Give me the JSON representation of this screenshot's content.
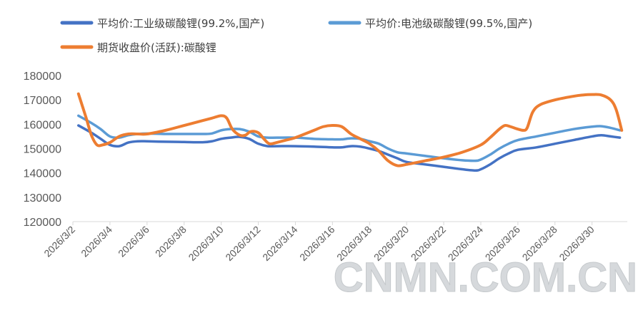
{
  "chart_data": {
    "type": "line",
    "title": "",
    "xlabel": "",
    "ylabel": "",
    "ylim": [
      120000,
      180000
    ],
    "yticks": [
      120000,
      130000,
      140000,
      150000,
      160000,
      170000,
      180000
    ],
    "x_tick_labels": [
      "2026/3/2",
      "2026/3/4",
      "2026/3/6",
      "2026/3/8",
      "2026/3/10",
      "2026/3/12",
      "2026/3/14",
      "2026/3/16",
      "2026/3/18",
      "2026/3/20",
      "2026/3/22",
      "2026/3/24",
      "2026/3/26",
      "2026/3/28",
      "2026/3/30"
    ],
    "x_tick_days": [
      2,
      4,
      6,
      8,
      10,
      12,
      14,
      16,
      18,
      20,
      22,
      24,
      26,
      28,
      30
    ],
    "xlim_days": [
      2,
      31.9
    ],
    "grid": false,
    "legend_position": "top",
    "series": [
      {
        "name": "平均价:工业级碳酸锂(99.2%,国产)",
        "color": "#4472c4",
        "x_days": [
          2.3,
          3.0,
          3.5,
          4.0,
          4.5,
          5.0,
          5.5,
          6.0,
          7.0,
          8.0,
          9.0,
          9.5,
          10.0,
          10.5,
          11.0,
          11.5,
          12.0,
          12.5,
          13.0,
          14.0,
          15.0,
          16.0,
          16.5,
          17.0,
          17.5,
          18.0,
          18.5,
          19.0,
          19.5,
          20.0,
          21.0,
          22.0,
          23.0,
          23.7,
          24.0,
          24.5,
          25.0,
          25.5,
          26.0,
          27.0,
          28.0,
          29.0,
          30.0,
          30.5,
          31.0,
          31.5
        ],
        "values": [
          159500,
          156500,
          154000,
          151500,
          151000,
          152500,
          153000,
          153000,
          152800,
          152700,
          152600,
          153000,
          154000,
          154500,
          154800,
          154000,
          152000,
          151000,
          151000,
          151000,
          150800,
          150500,
          150500,
          151000,
          150800,
          150000,
          149000,
          147500,
          146000,
          144500,
          143500,
          142500,
          141500,
          141000,
          141500,
          143500,
          146000,
          148000,
          149500,
          150500,
          152000,
          153500,
          155000,
          155500,
          155000,
          154500
        ]
      },
      {
        "name": "平均价:电池级碳酸锂(99.5%,国产)",
        "color": "#5b9bd5",
        "x_days": [
          2.3,
          3.0,
          3.5,
          4.0,
          4.5,
          5.0,
          5.5,
          6.0,
          7.0,
          8.0,
          9.0,
          9.5,
          10.0,
          10.5,
          11.0,
          11.5,
          12.0,
          12.5,
          13.0,
          14.0,
          15.0,
          16.0,
          16.5,
          17.0,
          17.5,
          18.0,
          18.5,
          19.0,
          19.5,
          20.0,
          21.0,
          22.0,
          23.0,
          23.7,
          24.0,
          24.5,
          25.0,
          25.5,
          26.0,
          27.0,
          28.0,
          29.0,
          30.0,
          30.5,
          31.0,
          31.5
        ],
        "values": [
          163500,
          160500,
          158000,
          155000,
          154500,
          155500,
          156000,
          156200,
          156000,
          156000,
          156000,
          156200,
          157500,
          158000,
          158000,
          157000,
          155000,
          154500,
          154500,
          154500,
          154000,
          153800,
          153800,
          154200,
          154000,
          153000,
          152000,
          150000,
          148500,
          148000,
          147000,
          146000,
          145200,
          145000,
          145500,
          147500,
          150000,
          152000,
          153500,
          155000,
          156500,
          158000,
          159000,
          159200,
          158500,
          157500
        ]
      },
      {
        "name": "期货收盘价(活跃):碳酸锂",
        "color": "#ed7d31",
        "x_days": [
          2.3,
          2.7,
          3.0,
          3.3,
          3.6,
          4.0,
          4.5,
          5.0,
          5.5,
          6.0,
          7.0,
          8.0,
          9.0,
          9.5,
          10.0,
          10.3,
          10.6,
          11.0,
          11.3,
          11.6,
          12.0,
          12.3,
          12.6,
          13.0,
          13.5,
          14.0,
          15.0,
          15.5,
          16.0,
          16.5,
          17.0,
          17.5,
          18.0,
          18.5,
          19.0,
          19.5,
          20.0,
          21.0,
          22.0,
          23.0,
          24.0,
          24.5,
          25.0,
          25.3,
          25.6,
          26.0,
          26.3,
          26.5,
          26.8,
          27.2,
          28.0,
          29.0,
          29.5,
          30.0,
          30.5,
          31.0,
          31.3,
          31.6
        ],
        "values": [
          172500,
          163000,
          155500,
          151500,
          151500,
          152500,
          155000,
          156000,
          156000,
          156000,
          157500,
          159500,
          161500,
          162500,
          163500,
          162500,
          158000,
          155500,
          155500,
          157000,
          156500,
          154000,
          152000,
          152500,
          153500,
          154500,
          157500,
          159000,
          159500,
          159000,
          156000,
          154000,
          152000,
          149000,
          145000,
          143000,
          143500,
          145000,
          146500,
          148500,
          151500,
          154500,
          158000,
          159500,
          159000,
          158000,
          157500,
          158500,
          165000,
          168000,
          170000,
          171500,
          172000,
          172200,
          172000,
          170000,
          166000,
          157500
        ]
      }
    ]
  },
  "watermark": "CNMN.COM.CN"
}
